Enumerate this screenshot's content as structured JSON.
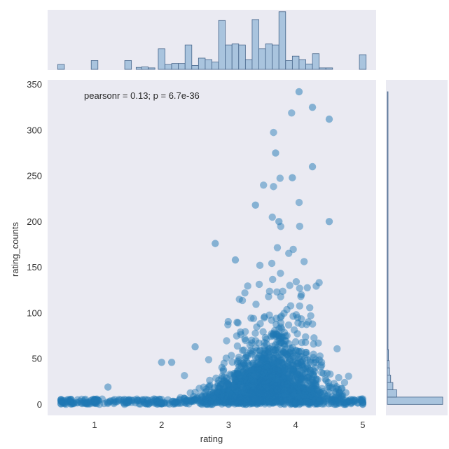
{
  "chart_data": {
    "type": "scatter",
    "subtype": "jointplot",
    "xlabel": "rating",
    "ylabel": "rating_counts",
    "annotation": "pearsonr = 0.13; p = 6.7e-36",
    "xlim": [
      0.3,
      5.2
    ],
    "ylim": [
      -12,
      355
    ],
    "x_ticks": [
      1,
      2,
      3,
      4,
      5
    ],
    "y_ticks": [
      0,
      50,
      100,
      150,
      200,
      250,
      300,
      350
    ],
    "grid": false,
    "colors": {
      "panel_background": "#eaeaf2",
      "marker": "#1f77b4",
      "hist_fill": "#a9c4de",
      "hist_edge": "#46658a"
    },
    "points_sample": [
      {
        "x": 0.5,
        "y": 1
      },
      {
        "x": 1.0,
        "y": 4
      },
      {
        "x": 1.2,
        "y": 19
      },
      {
        "x": 1.5,
        "y": 4
      },
      {
        "x": 2.0,
        "y": 46
      },
      {
        "x": 2.15,
        "y": 46
      },
      {
        "x": 2.5,
        "y": 63
      },
      {
        "x": 2.8,
        "y": 176
      },
      {
        "x": 3.1,
        "y": 158
      },
      {
        "x": 3.4,
        "y": 218
      },
      {
        "x": 3.7,
        "y": 275
      },
      {
        "x": 3.75,
        "y": 200
      },
      {
        "x": 3.95,
        "y": 248
      },
      {
        "x": 4.05,
        "y": 342
      },
      {
        "x": 4.25,
        "y": 325
      },
      {
        "x": 4.5,
        "y": 312
      },
      {
        "x": 4.25,
        "y": 260
      },
      {
        "x": 4.5,
        "y": 200
      },
      {
        "x": 4.7,
        "y": 10
      },
      {
        "x": 5.0,
        "y": 2
      }
    ],
    "marginal_x": {
      "description": "histogram of rating",
      "bins": [
        {
          "x": 0.5,
          "h": 0.1
        },
        {
          "x": 1.0,
          "h": 0.18
        },
        {
          "x": 1.5,
          "h": 0.18
        },
        {
          "x": 1.67,
          "h": 0.04
        },
        {
          "x": 1.75,
          "h": 0.05
        },
        {
          "x": 1.85,
          "h": 0.03
        },
        {
          "x": 2.0,
          "h": 0.42
        },
        {
          "x": 2.1,
          "h": 0.1
        },
        {
          "x": 2.2,
          "h": 0.12
        },
        {
          "x": 2.3,
          "h": 0.12
        },
        {
          "x": 2.4,
          "h": 0.5
        },
        {
          "x": 2.5,
          "h": 0.08
        },
        {
          "x": 2.6,
          "h": 0.23
        },
        {
          "x": 2.7,
          "h": 0.2
        },
        {
          "x": 2.8,
          "h": 0.15
        },
        {
          "x": 2.9,
          "h": 1.0
        },
        {
          "x": 3.0,
          "h": 0.5
        },
        {
          "x": 3.1,
          "h": 0.52
        },
        {
          "x": 3.2,
          "h": 0.5
        },
        {
          "x": 3.3,
          "h": 0.2
        },
        {
          "x": 3.4,
          "h": 1.02
        },
        {
          "x": 3.5,
          "h": 0.42
        },
        {
          "x": 3.6,
          "h": 0.52
        },
        {
          "x": 3.7,
          "h": 0.5
        },
        {
          "x": 3.8,
          "h": 1.18
        },
        {
          "x": 3.9,
          "h": 0.18
        },
        {
          "x": 4.0,
          "h": 0.27
        },
        {
          "x": 4.1,
          "h": 0.2
        },
        {
          "x": 4.2,
          "h": 0.11
        },
        {
          "x": 4.3,
          "h": 0.32
        },
        {
          "x": 4.4,
          "h": 0.03
        },
        {
          "x": 4.5,
          "h": 0.03
        },
        {
          "x": 5.0,
          "h": 0.3
        }
      ]
    },
    "marginal_y": {
      "description": "histogram of rating_counts",
      "bins": [
        {
          "y0": 0,
          "y1": 8,
          "w": 1.0
        },
        {
          "y0": 8,
          "y1": 16,
          "w": 0.17
        },
        {
          "y0": 16,
          "y1": 24,
          "w": 0.1
        },
        {
          "y0": 24,
          "y1": 32,
          "w": 0.06
        },
        {
          "y0": 32,
          "y1": 40,
          "w": 0.04
        },
        {
          "y0": 40,
          "y1": 48,
          "w": 0.03
        },
        {
          "y0": 48,
          "y1": 60,
          "w": 0.02
        },
        {
          "y0": 60,
          "y1": 342,
          "w": 0.012
        }
      ]
    }
  }
}
